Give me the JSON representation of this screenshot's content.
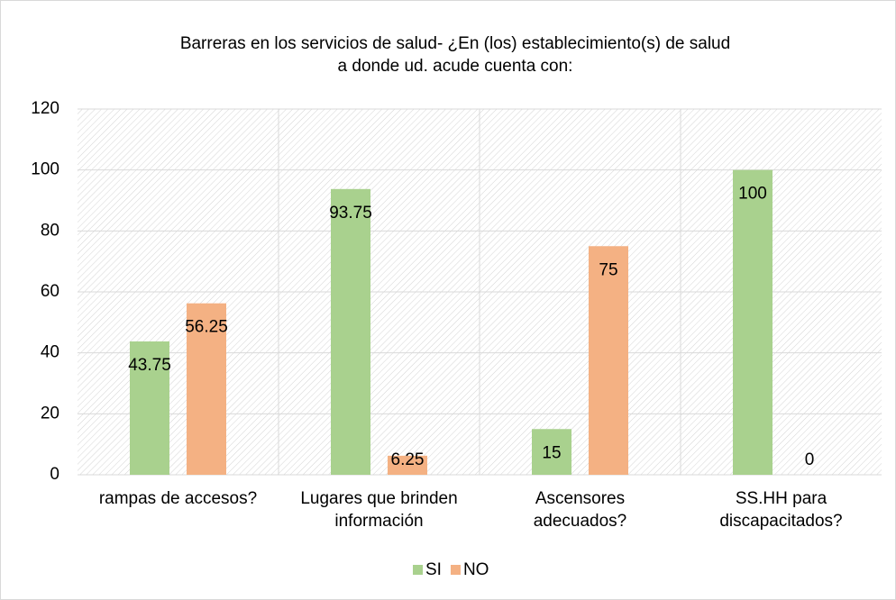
{
  "chart_data": {
    "type": "bar",
    "title": "Barreras en los servicios de salud- ¿En (los) establecimiento(s) de salud\na donde ud. acude cuenta con:",
    "categories": [
      "rampas de accesos?",
      "Lugares que brinden\ninformación",
      "Ascensores\nadecuados?",
      "SS.HH para\ndiscapacitados?"
    ],
    "series": [
      {
        "name": "SI",
        "color": "#a9d18e",
        "values": [
          43.75,
          93.75,
          15,
          100
        ]
      },
      {
        "name": "NO",
        "color": "#f4b183",
        "values": [
          56.25,
          6.25,
          75,
          0
        ]
      }
    ],
    "ylim": [
      0,
      120
    ],
    "yticks": [
      0,
      20,
      40,
      60,
      80,
      100,
      120
    ],
    "grid": true,
    "legend": "bottom"
  }
}
